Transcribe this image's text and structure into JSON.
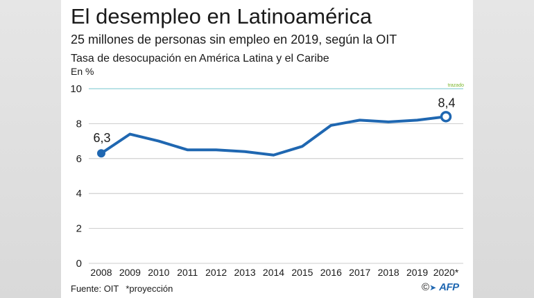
{
  "title": "El desempleo en Latinoamérica",
  "subtitle": "25 millones de personas sin empleo en 2019, según la OIT",
  "chart_data": {
    "type": "line",
    "title": "Tasa de desocupación en América Latina y el Caribe",
    "ylabel": "En %",
    "xlabel": "",
    "x": [
      "2008",
      "2009",
      "2010",
      "2011",
      "2012",
      "2013",
      "2014",
      "2015",
      "2016",
      "2017",
      "2018",
      "2019",
      "2020*"
    ],
    "series": [
      {
        "values": [
          6.3,
          7.4,
          7.0,
          6.5,
          6.5,
          6.4,
          6.2,
          6.7,
          7.9,
          8.2,
          8.1,
          8.2,
          8.4
        ]
      }
    ],
    "yticks": [
      0,
      2,
      4,
      6,
      8,
      10
    ],
    "ylim": [
      0,
      10
    ],
    "grid": true,
    "annotations": [
      {
        "label": "6,3",
        "x": "2008"
      },
      {
        "label": "8,4",
        "x": "2020*"
      },
      {
        "label": "trazado",
        "x": "2020*"
      }
    ],
    "line_color": "#1f67b1",
    "top_gridline_color": "#8fd0d8"
  },
  "footer": {
    "source": "Fuente: OIT",
    "note": "*proyección",
    "copyright": "©",
    "agency": "AFP"
  }
}
